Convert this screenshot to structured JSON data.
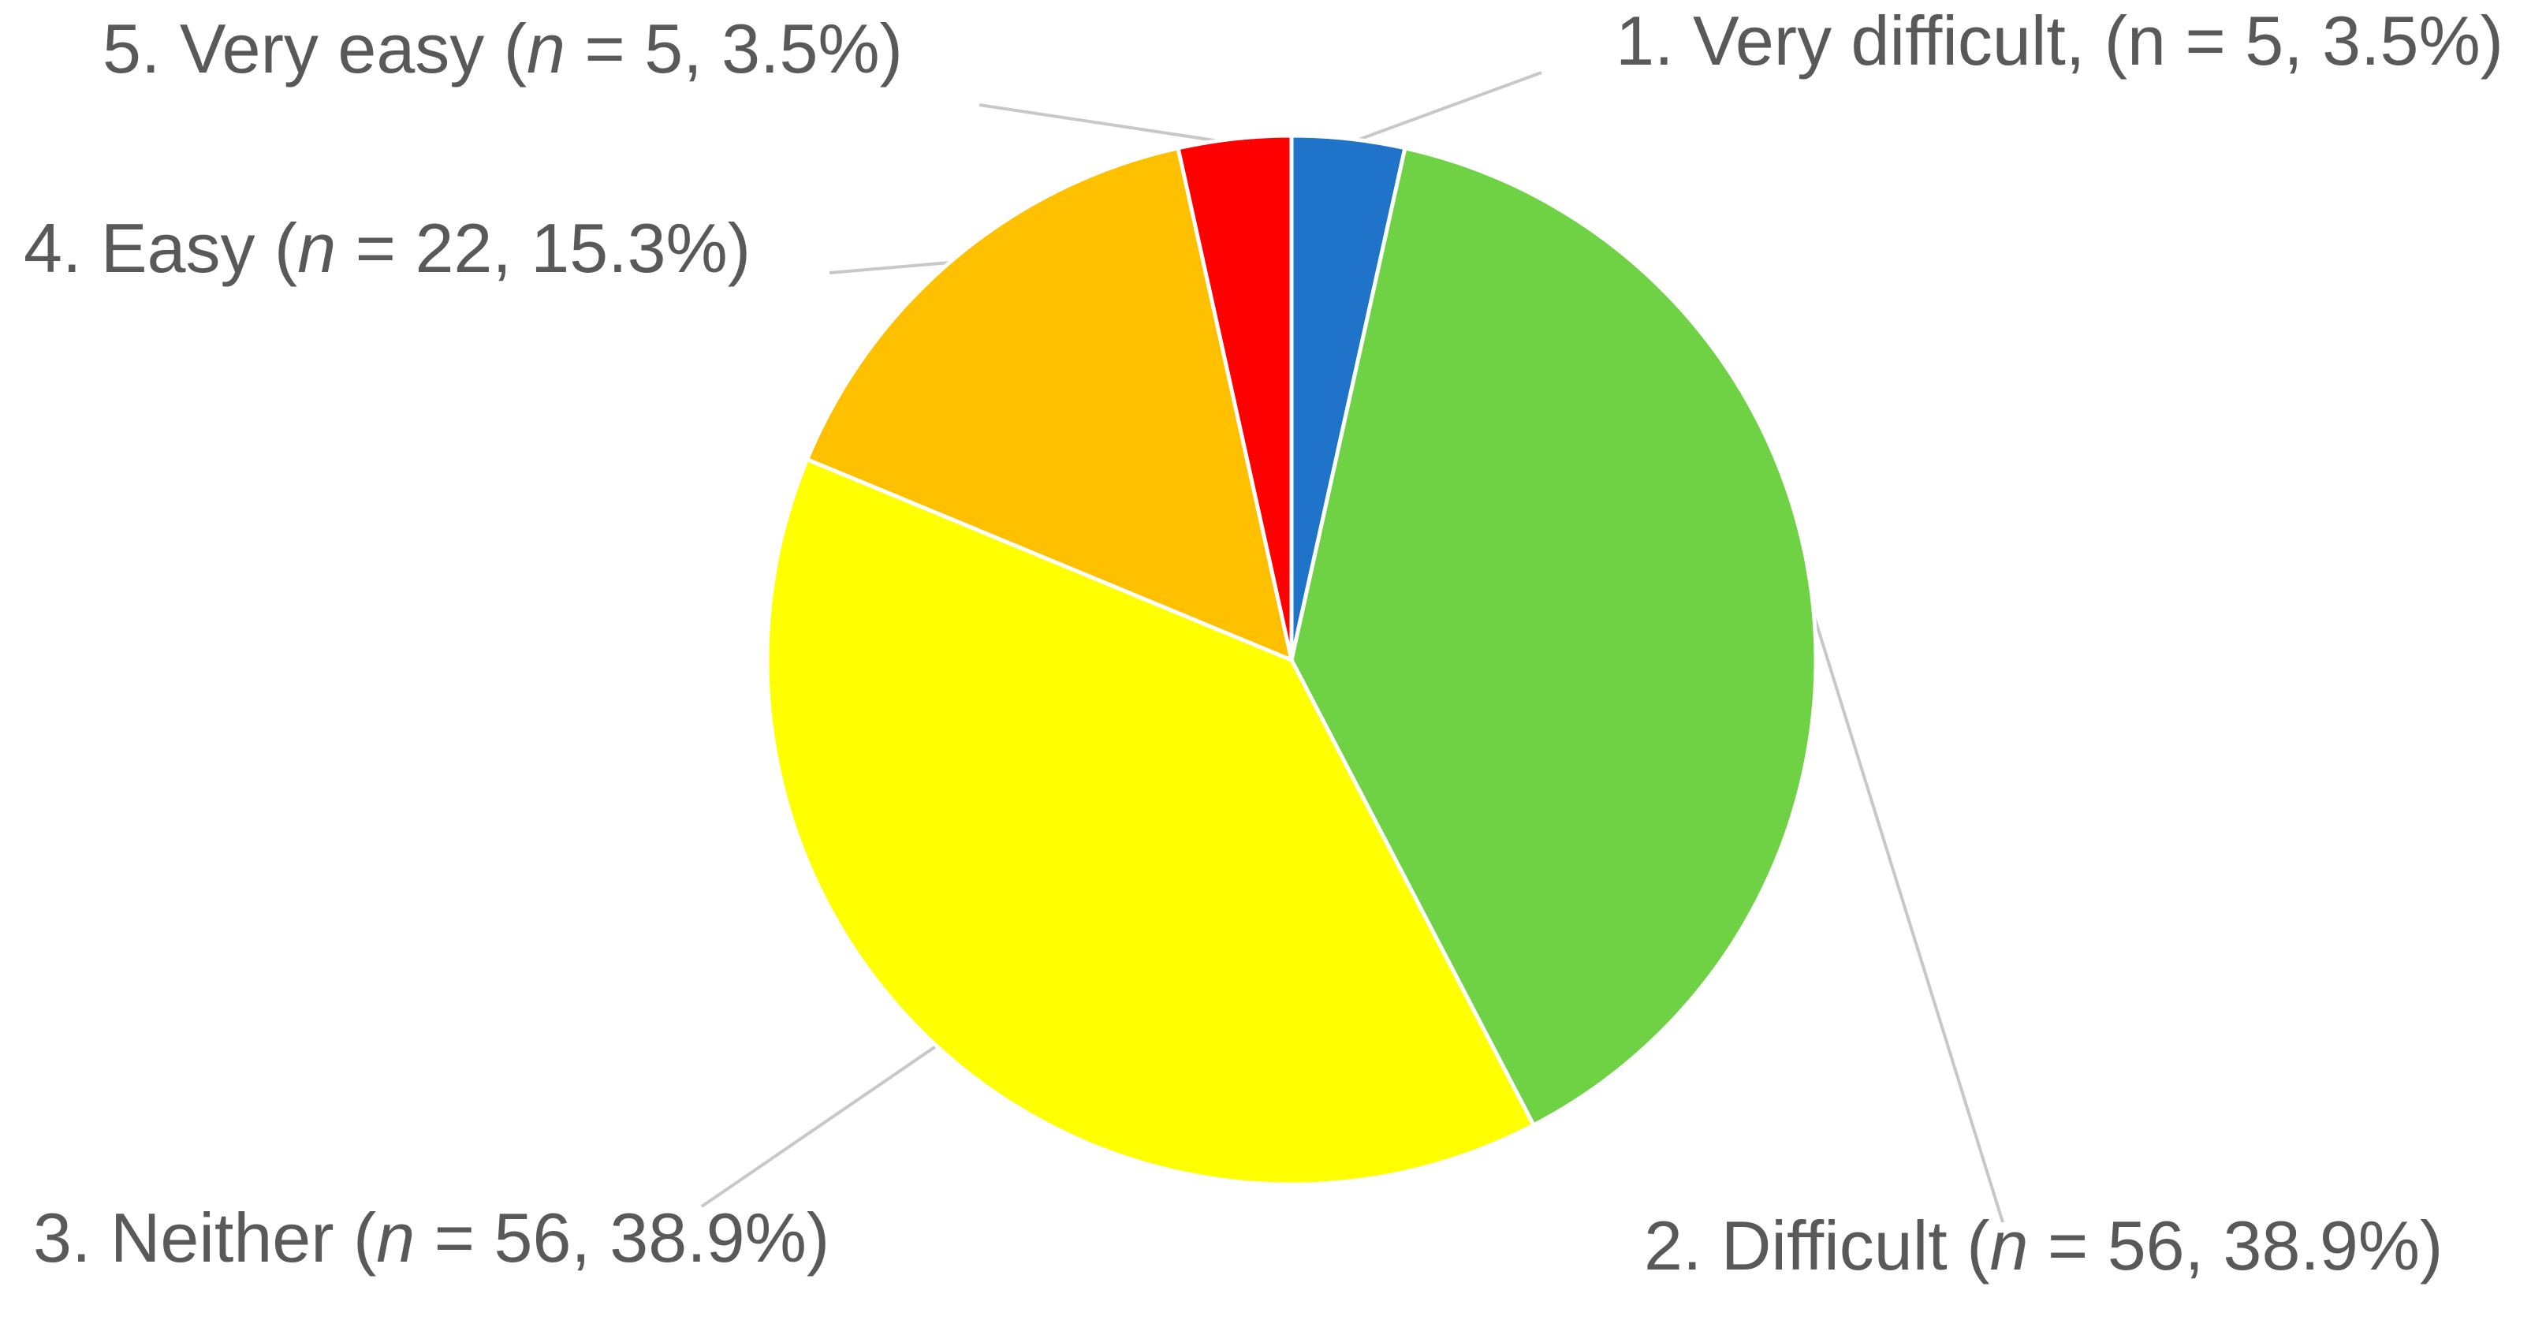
{
  "chart_data": {
    "type": "pie",
    "start": "top",
    "direction": "clockwise",
    "slices": [
      {
        "id": "very-difficult",
        "value": 5,
        "percent": 3.5,
        "color": "#1f73c9",
        "label": {
          "prefix": "1.  Very difficult, (n = ",
          "n": "",
          "suffix": "5, 3.5%)"
        }
      },
      {
        "id": "difficult",
        "value": 56,
        "percent": 38.9,
        "color": "#6fd244",
        "label": {
          "prefix": "2. Difficult (",
          "n": "n",
          "suffix": " = 56, 38.9%)"
        }
      },
      {
        "id": "neither",
        "value": 56,
        "percent": 38.9,
        "color": "#ffff00",
        "label": {
          "prefix": "3. Neither (",
          "n": "n",
          "suffix": " = 56, 38.9%)"
        }
      },
      {
        "id": "easy",
        "value": 22,
        "percent": 15.3,
        "color": "#ffc000",
        "label": {
          "prefix": "4. Easy (",
          "n": "n",
          "suffix": " = 22, 15.3%)"
        }
      },
      {
        "id": "very-easy",
        "value": 5,
        "percent": 3.5,
        "color": "#ff0000",
        "label": {
          "prefix": "5. Very easy (",
          "n": "n",
          "suffix": " = 5, 3.5%)"
        }
      }
    ]
  }
}
